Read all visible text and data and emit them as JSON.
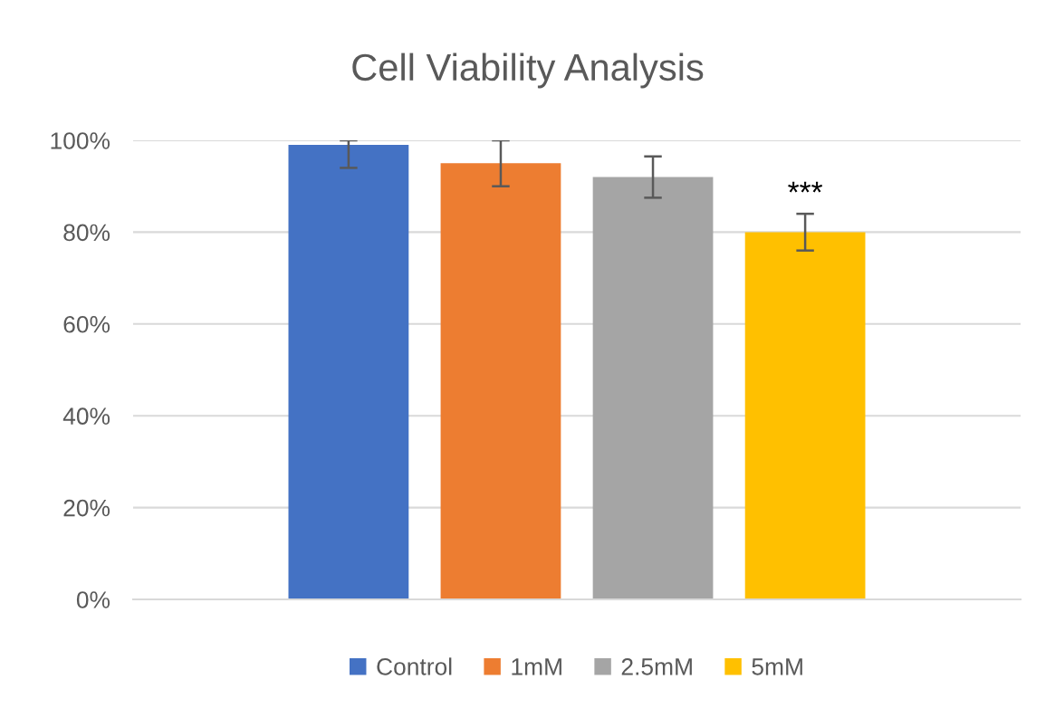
{
  "chart_data": {
    "type": "bar",
    "title": "Cell Viability Analysis",
    "categories": [
      null
    ],
    "series": [
      {
        "name": "Control",
        "color": "#4472c4",
        "values": [
          99
        ],
        "errors": [
          [
            94,
            100
          ]
        ]
      },
      {
        "name": "1mM",
        "color": "#ed7d31",
        "values": [
          95
        ],
        "errors": [
          5
        ]
      },
      {
        "name": "2.5mM",
        "color": "#a5a5a5",
        "values": [
          92
        ],
        "errors": [
          4.5
        ]
      },
      {
        "name": "5mM",
        "color": "#ffc000",
        "values": [
          80
        ],
        "errors": [
          4
        ]
      }
    ],
    "annotations": [
      "***"
    ],
    "ylim": [
      0,
      100
    ],
    "yticks": [
      {
        "value": 0,
        "label": "0%"
      },
      {
        "value": 20,
        "label": "20%"
      },
      {
        "value": 40,
        "label": "40%"
      },
      {
        "value": 60,
        "label": "60%"
      },
      {
        "value": 80,
        "label": "80%"
      },
      {
        "value": 100,
        "label": "100%"
      }
    ],
    "grid": "y",
    "legend": "bottom"
  }
}
